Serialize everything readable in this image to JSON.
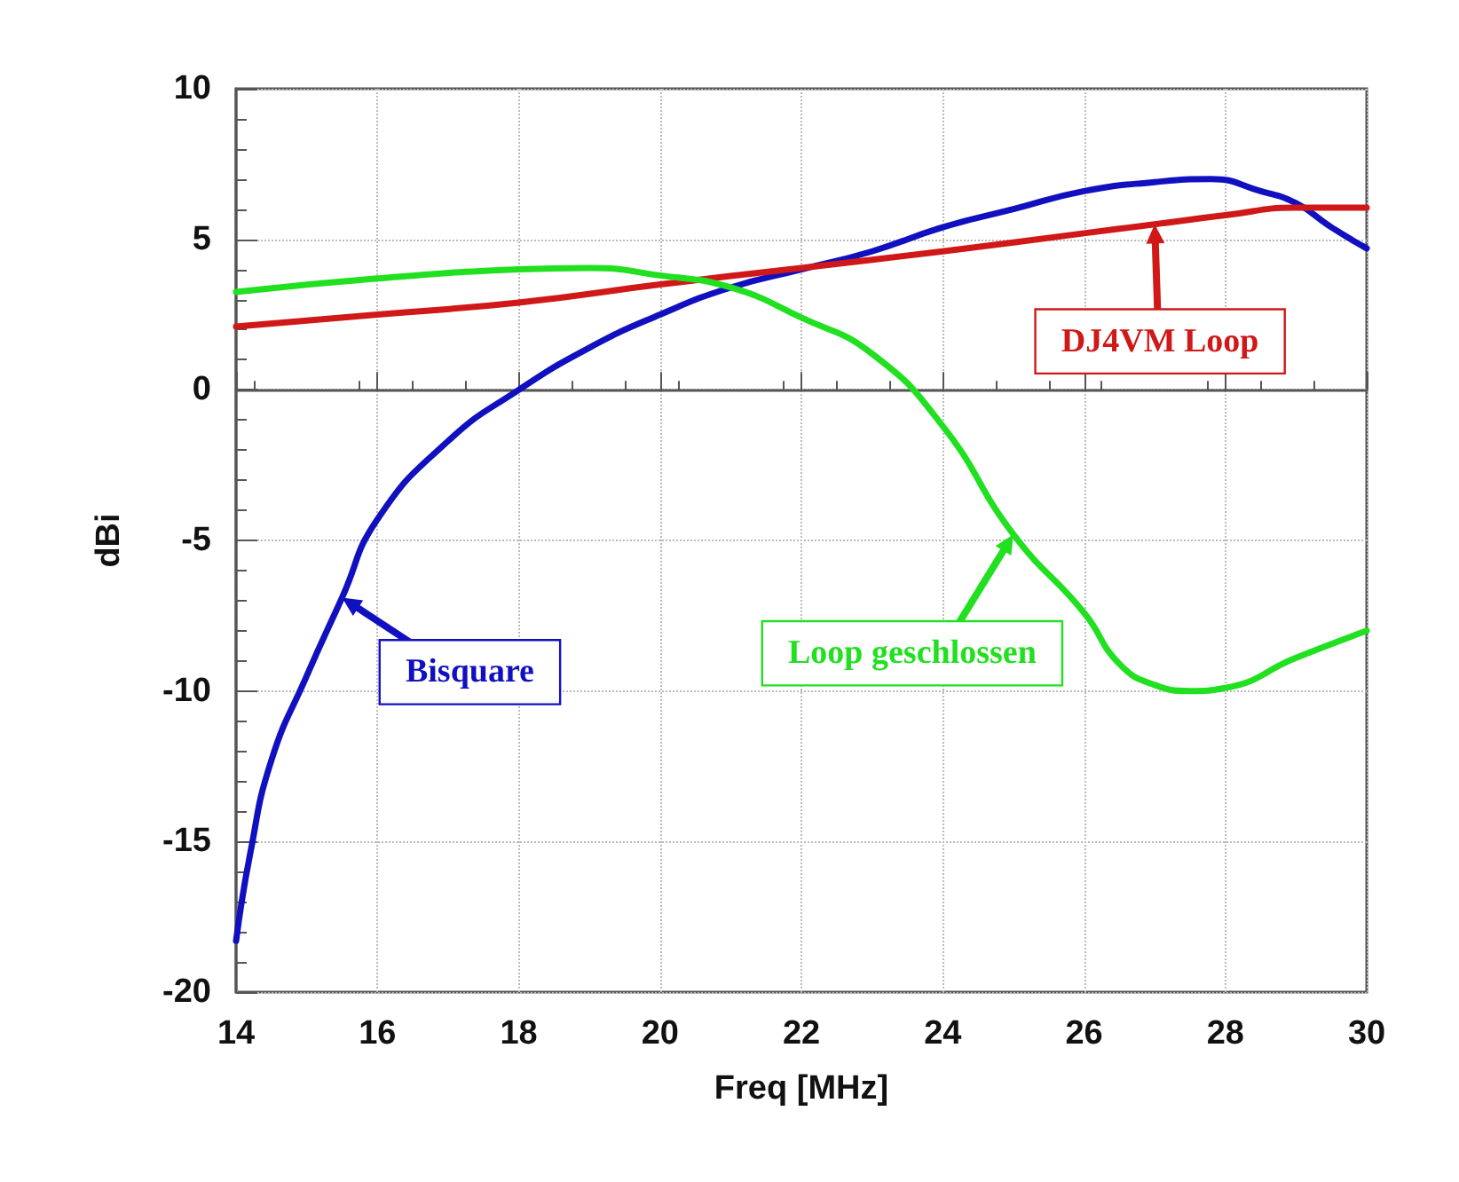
{
  "chart_data": {
    "type": "line",
    "xlabel": "Freq [MHz]",
    "ylabel": "dBi",
    "xlim": [
      14,
      30
    ],
    "xticks": [
      14,
      16,
      18,
      20,
      22,
      24,
      26,
      28,
      30
    ],
    "ylim": [
      -20,
      10
    ],
    "yticks": [
      -20,
      -15,
      -10,
      -5,
      0,
      5,
      10
    ],
    "grid": true,
    "marker": "none",
    "line_style": "solid",
    "series": [
      {
        "color": "#1010c0",
        "x": [
          14,
          14.2,
          14.5,
          15,
          15.5,
          16,
          17,
          18,
          19,
          20,
          21,
          22,
          23,
          24,
          25,
          26,
          27,
          27.8,
          28.5,
          29,
          29.5,
          30
        ],
        "values": [
          -18.3,
          -15.4,
          -12.3,
          -9.5,
          -6.9,
          -4.3,
          -1.7,
          0,
          1.4,
          2.5,
          3.4,
          4.0,
          4.6,
          5.4,
          6.0,
          6.6,
          6.9,
          7.0,
          6.6,
          6.2,
          5.4,
          4.7
        ]
      },
      {
        "color": "#d01818",
        "x": [
          14,
          16,
          18,
          20,
          22,
          24,
          26,
          27,
          28,
          29,
          30
        ],
        "values": [
          2.1,
          2.5,
          2.9,
          3.5,
          4.05,
          4.6,
          5.2,
          5.5,
          5.8,
          6.05,
          6.05
        ]
      },
      {
        "color": "#20e020",
        "x": [
          14,
          16,
          18,
          19,
          20,
          21,
          22,
          23,
          24,
          25,
          26,
          26.5,
          27,
          27.5,
          28,
          29,
          30
        ],
        "values": [
          3.25,
          3.7,
          4.0,
          4.05,
          3.8,
          3.4,
          2.4,
          1.2,
          -1.2,
          -4.8,
          -7.4,
          -9.1,
          -9.8,
          -10,
          -9.9,
          -8.9,
          -8.0
        ]
      }
    ],
    "annotations": [
      {
        "text": "Bisquare",
        "x": 15.5,
        "y": -6.9
      },
      {
        "text": "DJ4VM Loop",
        "x": 27,
        "y": 5.5
      },
      {
        "text": "Loop geschlossen",
        "x": 25,
        "y": -4.8
      }
    ]
  }
}
